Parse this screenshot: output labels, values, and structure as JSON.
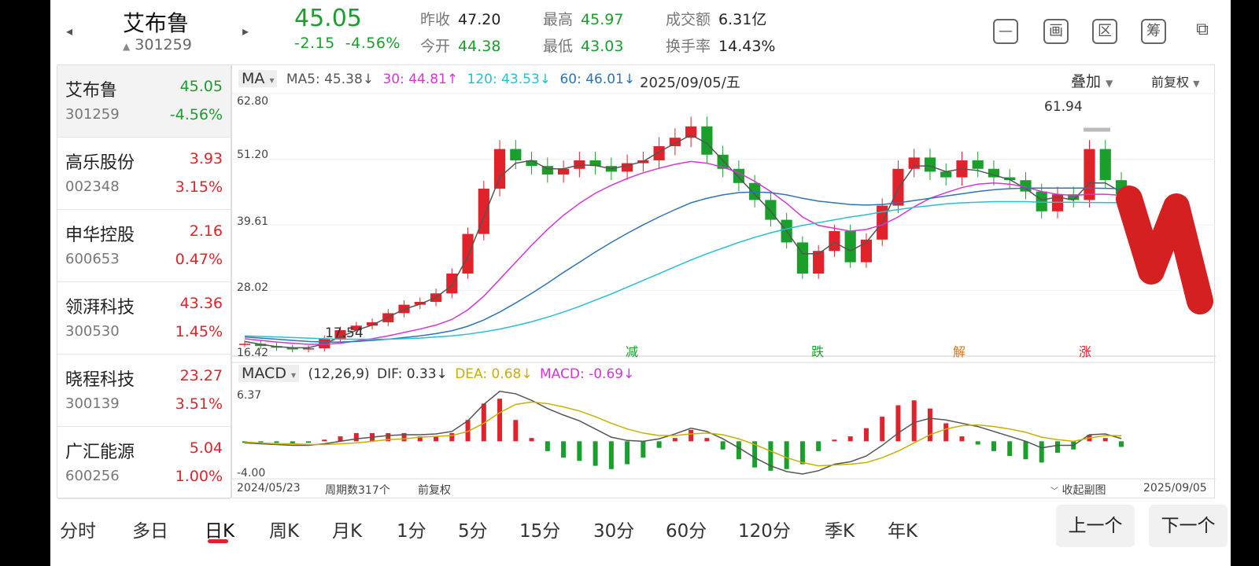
{
  "header": {
    "name": "艾布鲁",
    "code": "301259",
    "price": "45.05",
    "change": "-2.15",
    "change_pct": "-4.56%",
    "prev_close_label": "昨收",
    "prev_close": "47.20",
    "open_label": "今开",
    "open": "44.38",
    "high_label": "最高",
    "high": "45.97",
    "low_label": "最低",
    "low": "43.03",
    "turnover_label": "成交额",
    "turnover": "6.31亿",
    "turnover_rate_label": "换手率",
    "turnover_rate": "14.43%",
    "tools": [
      "画",
      "区",
      "筹"
    ]
  },
  "sidebar": {
    "items": [
      {
        "name": "艾布鲁",
        "code": "301259",
        "price": "45.05",
        "pct": "-4.56%",
        "dir": "down",
        "active": true
      },
      {
        "name": "高乐股份",
        "code": "002348",
        "price": "3.93",
        "pct": "3.15%",
        "dir": "up"
      },
      {
        "name": "申华控股",
        "code": "600653",
        "price": "2.16",
        "pct": "0.47%",
        "dir": "up"
      },
      {
        "name": "领湃科技",
        "code": "300530",
        "price": "43.36",
        "pct": "1.45%",
        "dir": "up"
      },
      {
        "name": "晓程科技",
        "code": "300139",
        "price": "23.27",
        "pct": "3.51%",
        "dir": "up"
      },
      {
        "name": "广汇能源",
        "code": "600256",
        "price": "5.04",
        "pct": "1.00%",
        "dir": "up"
      }
    ]
  },
  "chart": {
    "ma_selector": "MA",
    "ma5": "MA5: 45.38↓",
    "ma30": "30: 44.81↑",
    "ma120": "120: 43.53↓",
    "ma60": "60: 46.01↓",
    "date": "2025/09/05/五",
    "overlay": "叠加",
    "fuquan": "前复权",
    "y_ticks": [
      "62.80",
      "51.20",
      "39.61",
      "28.02",
      "16.42"
    ],
    "peak_label": "61.94",
    "low_label": "17.54",
    "markers": [
      "减",
      "跌",
      "解",
      "涨"
    ],
    "macd_selector": "MACD",
    "macd_params": "(12,26,9)",
    "dif": "DIF: 0.33↓",
    "dea": "DEA: 0.68↓",
    "macd": "MACD: -0.69↓",
    "macd_ticks": [
      "6.37",
      "-4.00"
    ],
    "start_date": "2024/05/23",
    "periods": "周期数317个",
    "fuquan_bottom": "前复权",
    "collapse": "收起副图",
    "end_date": "2025/09/05"
  },
  "chart_data": {
    "type": "line",
    "title": "艾布鲁 301259 日K",
    "y_axis": {
      "ylim": [
        16.42,
        62.8
      ]
    },
    "x_range": [
      "2024/05/23",
      "2025/09/05"
    ],
    "series": [
      {
        "name": "close",
        "values": [
          18.6,
          18.2,
          17.9,
          17.6,
          17.8,
          19.5,
          21.0,
          21.8,
          22.4,
          24.0,
          25.5,
          26.0,
          27.5,
          31.0,
          38.0,
          46.0,
          53.0,
          51.0,
          50.0,
          48.5,
          49.5,
          51.0,
          50.0,
          49.0,
          50.5,
          51.0,
          53.5,
          55.0,
          57.0,
          52.0,
          49.5,
          47.0,
          44.0,
          40.5,
          36.5,
          31.0,
          35.0,
          38.5,
          33.0,
          37.0,
          43.0,
          49.5,
          51.5,
          49.0,
          48.0,
          51.0,
          49.5,
          48.0,
          47.5,
          45.5,
          42.0,
          45.0,
          44.0,
          53.0,
          47.5,
          45.05
        ]
      },
      {
        "name": "MA5",
        "values": [
          19.0,
          18.5,
          18.1,
          17.9,
          17.9,
          18.6,
          19.8,
          21.0,
          21.9,
          23.3,
          24.7,
          25.6,
          26.8,
          28.9,
          34.0,
          41.0,
          48.0,
          50.5,
          51.0,
          49.5,
          49.5,
          50.2,
          50.1,
          49.5,
          50.1,
          50.8,
          52.5,
          54.0,
          55.5,
          54.0,
          51.0,
          48.0,
          45.0,
          42.0,
          38.5,
          34.5,
          34.5,
          36.5,
          35.0,
          36.5,
          40.0,
          46.0,
          50.0,
          50.0,
          49.0,
          49.5,
          49.2,
          48.4,
          47.6,
          46.0,
          44.0,
          44.5,
          44.0,
          47.0,
          47.0,
          45.38
        ]
      },
      {
        "name": "MA30",
        "values": [
          19.5,
          19.2,
          18.9,
          18.7,
          18.5,
          18.5,
          18.7,
          19.1,
          19.5,
          20.0,
          20.6,
          21.2,
          21.9,
          22.9,
          24.6,
          27.0,
          30.0,
          33.0,
          36.0,
          38.8,
          41.3,
          43.4,
          45.2,
          46.6,
          47.8,
          48.8,
          49.6,
          50.3,
          50.8,
          50.5,
          49.8,
          48.8,
          47.3,
          45.5,
          43.4,
          41.0,
          39.5,
          39.0,
          38.5,
          38.8,
          39.6,
          41.0,
          42.8,
          44.3,
          45.3,
          46.2,
          46.8,
          47.0,
          46.8,
          46.3,
          45.5,
          45.0,
          44.8,
          45.0,
          45.0,
          44.81
        ]
      },
      {
        "name": "MA60",
        "values": [
          19.8,
          19.6,
          19.4,
          19.2,
          19.0,
          18.9,
          18.9,
          19.0,
          19.2,
          19.4,
          19.7,
          20.0,
          20.4,
          20.9,
          21.7,
          22.8,
          24.2,
          25.8,
          27.5,
          29.3,
          31.2,
          33.0,
          34.8,
          36.5,
          38.1,
          39.6,
          41.0,
          42.3,
          43.5,
          44.3,
          44.9,
          45.3,
          45.4,
          45.3,
          44.9,
          44.3,
          43.8,
          43.5,
          43.2,
          43.1,
          43.2,
          43.5,
          43.9,
          44.3,
          44.7,
          45.1,
          45.5,
          45.8,
          46.0,
          46.1,
          46.1,
          46.1,
          46.1,
          46.1,
          46.05,
          46.01
        ]
      },
      {
        "name": "MA120",
        "values": [
          20.0,
          19.9,
          19.8,
          19.7,
          19.6,
          19.5,
          19.4,
          19.4,
          19.4,
          19.4,
          19.5,
          19.6,
          19.8,
          20.0,
          20.3,
          20.7,
          21.2,
          21.8,
          22.5,
          23.3,
          24.2,
          25.2,
          26.3,
          27.4,
          28.6,
          29.8,
          31.0,
          32.2,
          33.4,
          34.5,
          35.5,
          36.5,
          37.4,
          38.2,
          38.9,
          39.5,
          40.0,
          40.5,
          41.0,
          41.4,
          41.9,
          42.3,
          42.7,
          43.0,
          43.3,
          43.5,
          43.6,
          43.7,
          43.7,
          43.7,
          43.6,
          43.6,
          43.6,
          43.55,
          43.54,
          43.53
        ]
      }
    ],
    "macd": {
      "ylim": [
        -4.0,
        6.37
      ],
      "dif": [
        -0.2,
        -0.3,
        -0.4,
        -0.5,
        -0.5,
        -0.3,
        0.0,
        0.3,
        0.5,
        0.7,
        0.8,
        0.8,
        0.9,
        1.2,
        2.5,
        4.5,
        6.1,
        5.8,
        5.0,
        4.0,
        3.2,
        2.5,
        1.5,
        0.5,
        0.1,
        0.0,
        0.3,
        0.9,
        1.6,
        1.2,
        0.3,
        -0.8,
        -2.0,
        -3.0,
        -3.7,
        -4.0,
        -3.6,
        -2.8,
        -2.5,
        -1.8,
        -0.5,
        1.0,
        2.3,
        2.8,
        2.6,
        2.2,
        1.8,
        1.2,
        0.6,
        0.0,
        -0.8,
        -0.5,
        -0.5,
        0.8,
        0.9,
        0.33
      ],
      "dea": [
        -0.1,
        -0.2,
        -0.3,
        -0.3,
        -0.4,
        -0.4,
        -0.3,
        -0.2,
        0.0,
        0.2,
        0.3,
        0.5,
        0.6,
        0.7,
        1.2,
        2.2,
        3.5,
        4.5,
        4.8,
        4.6,
        4.2,
        3.7,
        3.0,
        2.2,
        1.5,
        1.0,
        0.7,
        0.7,
        0.9,
        1.0,
        0.8,
        0.3,
        -0.4,
        -1.2,
        -2.0,
        -2.6,
        -3.0,
        -2.9,
        -2.8,
        -2.6,
        -2.0,
        -1.2,
        -0.2,
        0.8,
        1.5,
        1.9,
        2.0,
        1.8,
        1.5,
        1.1,
        0.5,
        0.2,
        0.0,
        0.4,
        0.7,
        0.68
      ],
      "hist": [
        -0.2,
        -0.2,
        -0.2,
        -0.3,
        -0.2,
        0.2,
        0.6,
        1.0,
        1.0,
        1.0,
        1.0,
        0.6,
        0.6,
        1.0,
        2.6,
        4.6,
        5.2,
        2.6,
        0.4,
        -1.2,
        -2.0,
        -2.4,
        -3.0,
        -3.4,
        -2.8,
        -2.0,
        -0.8,
        0.4,
        1.4,
        0.4,
        -1.0,
        -2.2,
        -3.2,
        -3.6,
        -3.4,
        -2.8,
        -1.2,
        0.2,
        0.6,
        1.6,
        3.0,
        4.4,
        5.0,
        4.0,
        2.2,
        0.6,
        -0.4,
        -1.2,
        -1.8,
        -2.2,
        -2.6,
        -1.4,
        -1.0,
        0.8,
        0.4,
        -0.69
      ]
    }
  },
  "tabs": {
    "items": [
      "分时",
      "多日",
      "日K",
      "周K",
      "月K",
      "1分",
      "5分",
      "15分",
      "30分",
      "60分",
      "120分",
      "季K",
      "年K"
    ],
    "active": "日K",
    "prev": "上一个",
    "next": "下一个"
  },
  "colors": {
    "up": "#e0232a",
    "down": "#1a9e2c",
    "ma5": "#555555",
    "ma30": "#d535d5",
    "ma60": "#2e74b5",
    "ma120": "#26c0d0",
    "dea": "#c7b000"
  }
}
